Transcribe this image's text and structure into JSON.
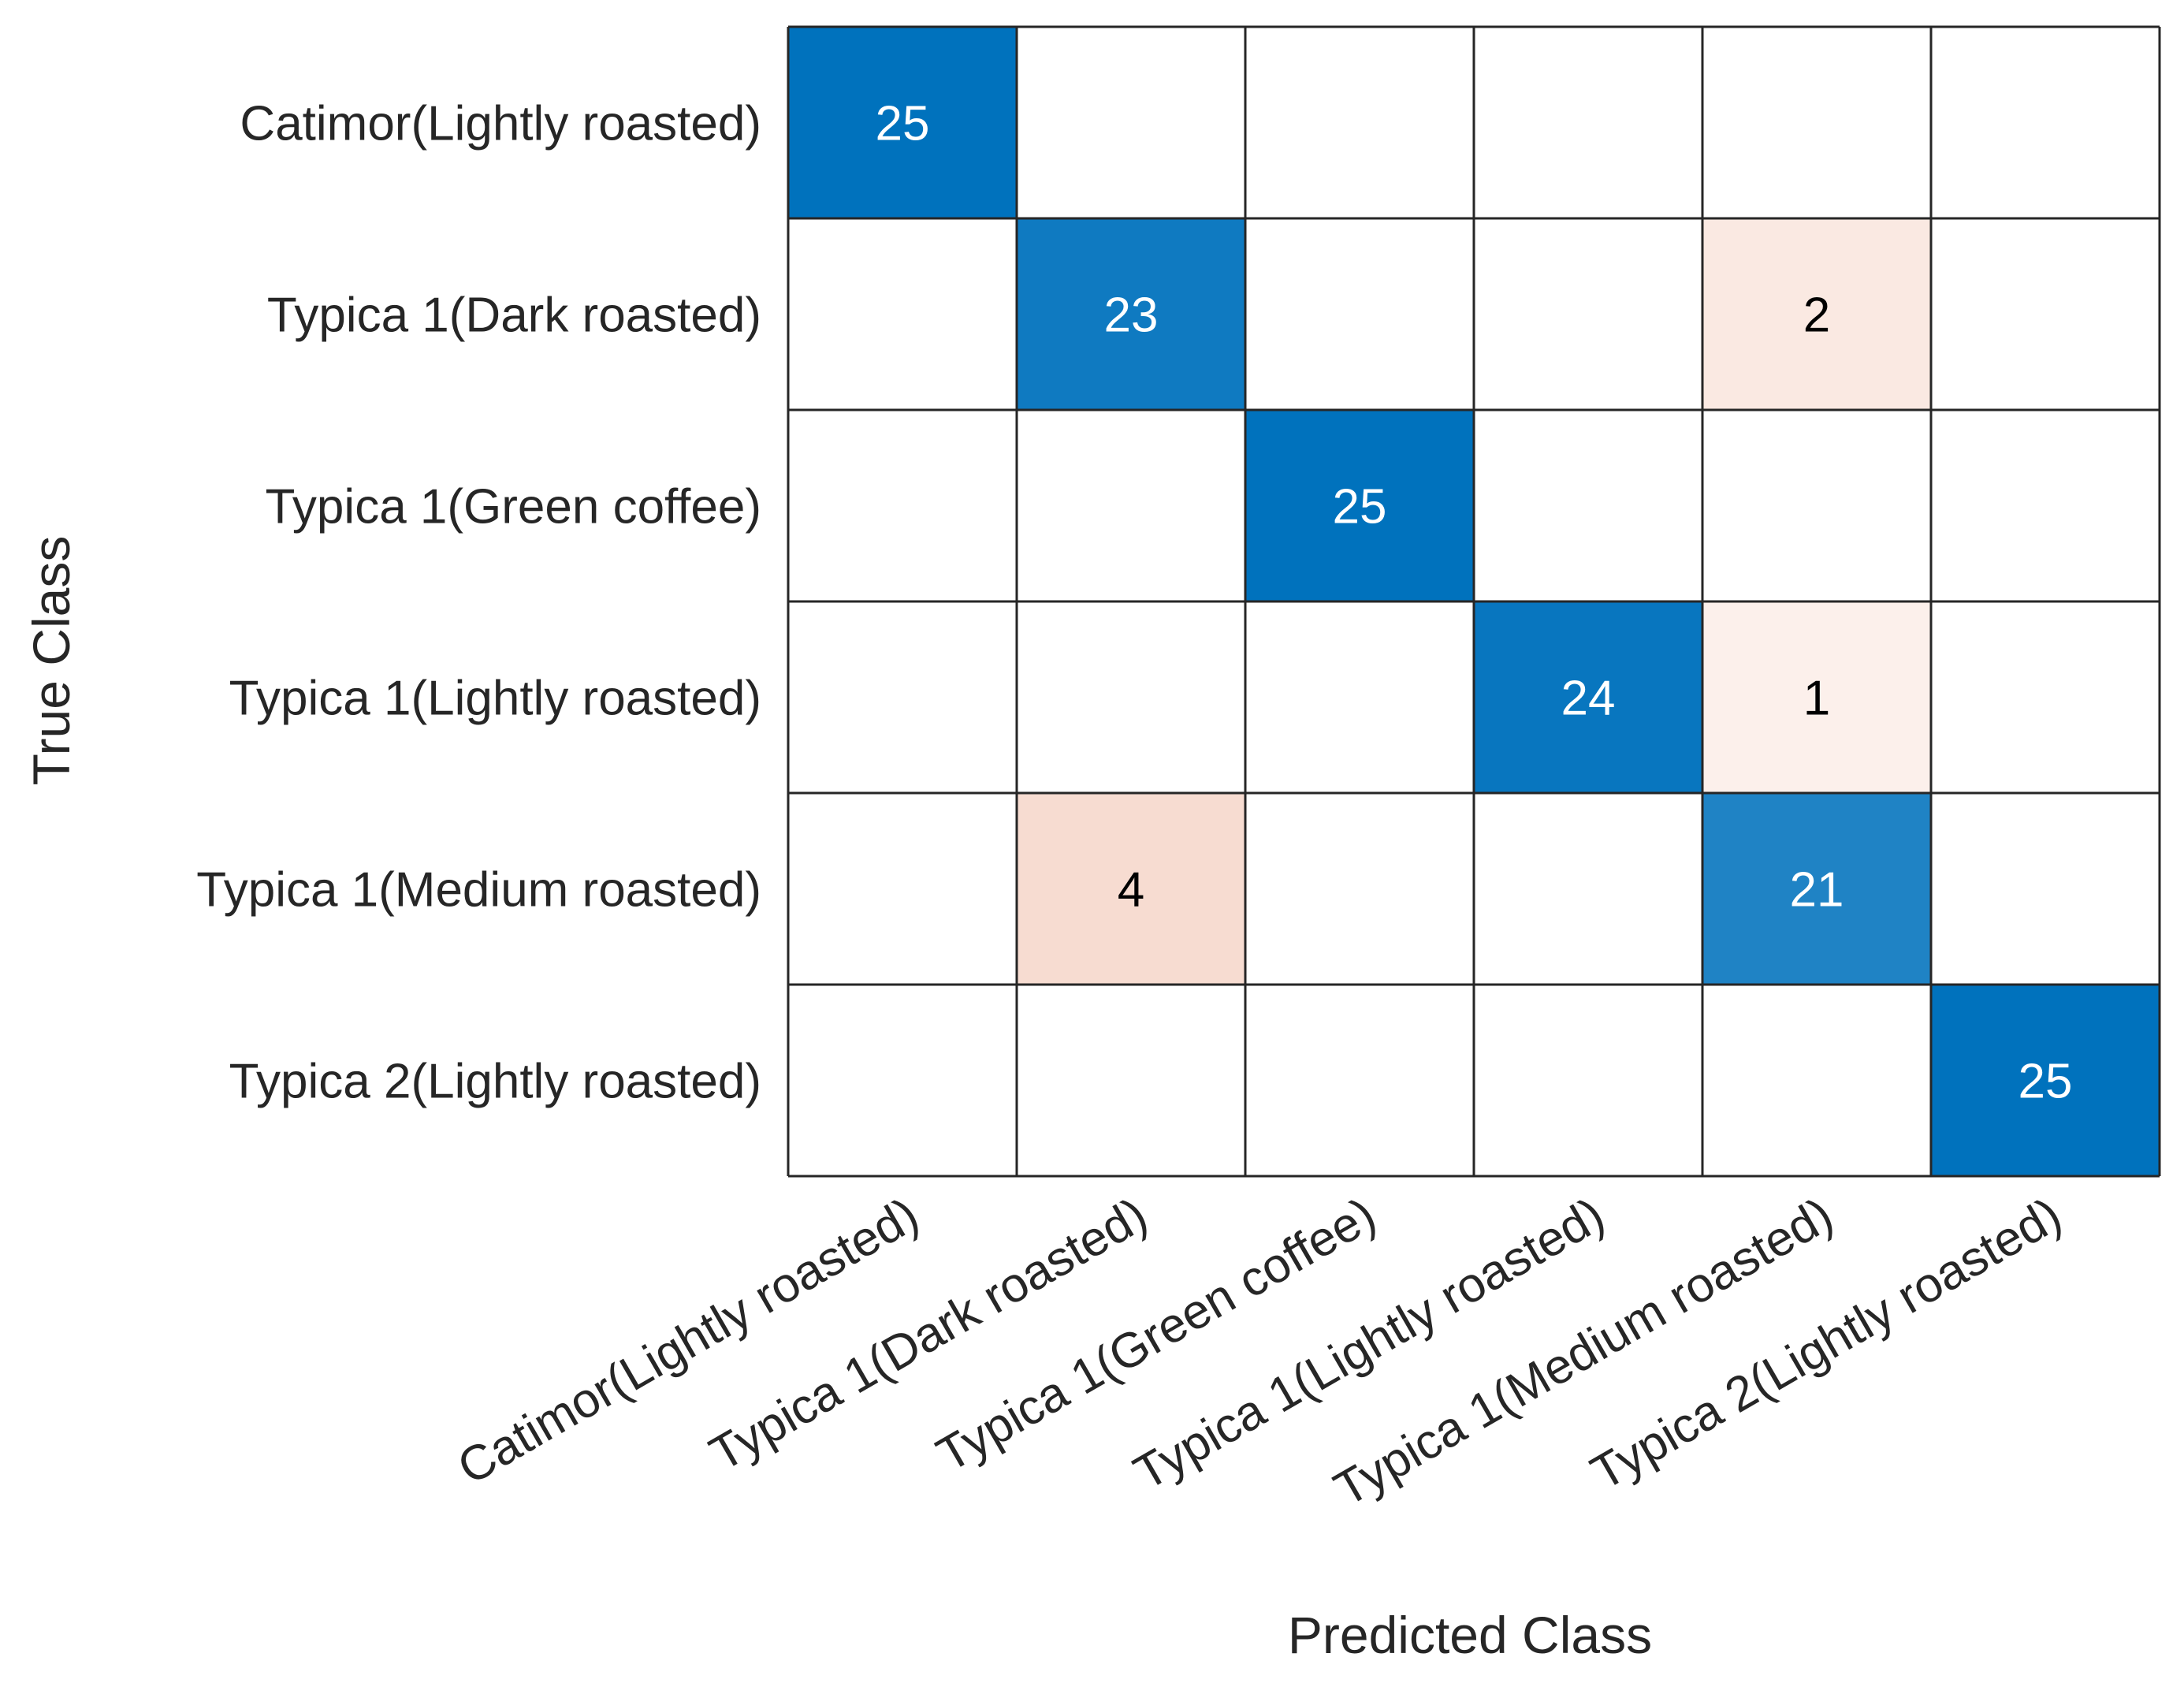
{
  "chart_data": {
    "type": "heatmap",
    "xlabel": "Predicted Class",
    "ylabel": "True Class",
    "rows": [
      "Catimor(Lightly roasted)",
      "Typica 1(Dark roasted)",
      "Typica 1(Green coffee)",
      "Typica 1(Lightly roasted)",
      "Typica 1(Medium roasted)",
      "Typica 2(Lightly roasted)"
    ],
    "columns": [
      "Catimor(Lightly roasted)",
      "Typica 1(Dark roasted)",
      "Typica 1(Green coffee)",
      "Typica 1(Lightly roasted)",
      "Typica 1(Medium roasted)",
      "Typica 2(Lightly roasted)"
    ],
    "matrix": [
      [
        25,
        0,
        0,
        0,
        0,
        0
      ],
      [
        0,
        23,
        0,
        0,
        2,
        0
      ],
      [
        0,
        0,
        25,
        0,
        0,
        0
      ],
      [
        0,
        0,
        0,
        24,
        1,
        0
      ],
      [
        0,
        4,
        0,
        0,
        21,
        0
      ],
      [
        0,
        0,
        0,
        0,
        0,
        25
      ]
    ],
    "colors": {
      "diagonal_max": "#0072BD",
      "offdiag_max": "#D95319",
      "empty": "#FFFFFF",
      "grid": "#262626",
      "text_light": "#FFFFFF",
      "text_dark": "#000000"
    },
    "color_scale_max": 25
  }
}
